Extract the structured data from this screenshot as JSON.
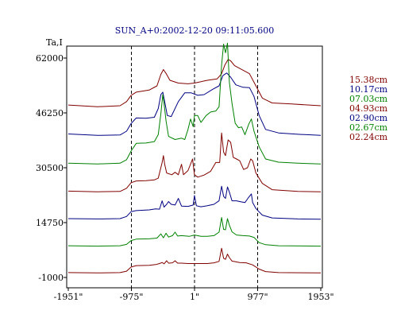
{
  "chart_data": {
    "type": "line",
    "title": "SUN_A+0:2002-12-20 09:11:05.600",
    "ylabel": "Ta,I",
    "xlabel": "",
    "xlim": [
      -1951,
      1953
    ],
    "ylim": [
      -1000,
      66500
    ],
    "x_ticks": [
      -1951,
      -975,
      1,
      977,
      1953
    ],
    "x_tick_labels": [
      "-1951\"",
      "-975\"",
      "1\"",
      "977\"",
      "1953\""
    ],
    "y_ticks": [
      62000,
      46250,
      30500,
      14750,
      -1000
    ],
    "y_tick_labels": [
      "62000",
      "46250",
      "30500",
      "14750",
      "-1000"
    ],
    "vlines": [
      -975,
      1,
      977
    ],
    "grid": false,
    "legend_position": "right",
    "series": [
      {
        "name": "15.38cm",
        "color": "#800000",
        "points": [
          [
            -1951,
            48500
          ],
          [
            -1500,
            48000
          ],
          [
            -1150,
            48300
          ],
          [
            -1050,
            49500
          ],
          [
            -980,
            51300
          ],
          [
            -900,
            52200
          ],
          [
            -700,
            52800
          ],
          [
            -580,
            54000
          ],
          [
            -520,
            57300
          ],
          [
            -480,
            58700
          ],
          [
            -440,
            57600
          ],
          [
            -380,
            55600
          ],
          [
            -250,
            54800
          ],
          [
            -100,
            54600
          ],
          [
            0,
            54800
          ],
          [
            200,
            55600
          ],
          [
            350,
            56000
          ],
          [
            420,
            57500
          ],
          [
            470,
            60000
          ],
          [
            520,
            61600
          ],
          [
            560,
            61200
          ],
          [
            620,
            59800
          ],
          [
            700,
            59000
          ],
          [
            850,
            57500
          ],
          [
            950,
            54000
          ],
          [
            1050,
            50500
          ],
          [
            1200,
            49100
          ],
          [
            1500,
            48800
          ],
          [
            1953,
            48300
          ]
        ]
      },
      {
        "name": "10.17cm",
        "color": "#000080",
        "points": [
          [
            -1951,
            40200
          ],
          [
            -1500,
            39800
          ],
          [
            -1150,
            39900
          ],
          [
            -1050,
            41000
          ],
          [
            -980,
            43200
          ],
          [
            -900,
            44800
          ],
          [
            -750,
            44700
          ],
          [
            -620,
            45000
          ],
          [
            -560,
            47500
          ],
          [
            -520,
            51500
          ],
          [
            -490,
            52200
          ],
          [
            -460,
            49500
          ],
          [
            -420,
            45500
          ],
          [
            -360,
            45200
          ],
          [
            -250,
            49500
          ],
          [
            -150,
            52000
          ],
          [
            -50,
            52000
          ],
          [
            50,
            51300
          ],
          [
            150,
            51500
          ],
          [
            280,
            53000
          ],
          [
            380,
            54000
          ],
          [
            440,
            57000
          ],
          [
            500,
            57700
          ],
          [
            560,
            56500
          ],
          [
            640,
            54300
          ],
          [
            750,
            53600
          ],
          [
            850,
            53500
          ],
          [
            920,
            51000
          ],
          [
            1000,
            45500
          ],
          [
            1100,
            41500
          ],
          [
            1300,
            40500
          ],
          [
            1600,
            40100
          ],
          [
            1953,
            39800
          ]
        ]
      },
      {
        "name": "07.03cm",
        "color": "#008000",
        "points": [
          [
            -1951,
            31800
          ],
          [
            -1500,
            31600
          ],
          [
            -1150,
            31800
          ],
          [
            -1050,
            32800
          ],
          [
            -980,
            35300
          ],
          [
            -900,
            37500
          ],
          [
            -750,
            37600
          ],
          [
            -620,
            38000
          ],
          [
            -560,
            40000
          ],
          [
            -520,
            46000
          ],
          [
            -490,
            51500
          ],
          [
            -470,
            49000
          ],
          [
            -440,
            44000
          ],
          [
            -400,
            39500
          ],
          [
            -300,
            38600
          ],
          [
            -200,
            39000
          ],
          [
            -150,
            38600
          ],
          [
            -100,
            41500
          ],
          [
            -60,
            44500
          ],
          [
            -20,
            42300
          ],
          [
            0,
            45500
          ],
          [
            50,
            45500
          ],
          [
            100,
            43500
          ],
          [
            180,
            45500
          ],
          [
            250,
            46500
          ],
          [
            330,
            46800
          ],
          [
            380,
            48000
          ],
          [
            420,
            60000
          ],
          [
            450,
            66000
          ],
          [
            480,
            63500
          ],
          [
            510,
            66300
          ],
          [
            540,
            55000
          ],
          [
            580,
            49000
          ],
          [
            630,
            43300
          ],
          [
            680,
            42000
          ],
          [
            730,
            42200
          ],
          [
            780,
            40000
          ],
          [
            840,
            43000
          ],
          [
            880,
            44500
          ],
          [
            920,
            41000
          ],
          [
            1000,
            36500
          ],
          [
            1100,
            33000
          ],
          [
            1300,
            32100
          ],
          [
            1600,
            31800
          ],
          [
            1953,
            31600
          ]
        ]
      },
      {
        "name": "04.93cm",
        "color": "#800000",
        "points": [
          [
            -1951,
            23800
          ],
          [
            -1500,
            23600
          ],
          [
            -1150,
            23700
          ],
          [
            -1050,
            24600
          ],
          [
            -980,
            26200
          ],
          [
            -900,
            26700
          ],
          [
            -750,
            26800
          ],
          [
            -620,
            27000
          ],
          [
            -560,
            27500
          ],
          [
            -500,
            32000
          ],
          [
            -480,
            34000
          ],
          [
            -460,
            31500
          ],
          [
            -430,
            29000
          ],
          [
            -350,
            28500
          ],
          [
            -300,
            29200
          ],
          [
            -250,
            28500
          ],
          [
            -200,
            31500
          ],
          [
            -170,
            28500
          ],
          [
            -100,
            29700
          ],
          [
            -30,
            33000
          ],
          [
            0,
            28500
          ],
          [
            50,
            27800
          ],
          [
            150,
            28400
          ],
          [
            250,
            29500
          ],
          [
            330,
            32000
          ],
          [
            390,
            32000
          ],
          [
            420,
            40500
          ],
          [
            450,
            35000
          ],
          [
            480,
            34000
          ],
          [
            520,
            38500
          ],
          [
            560,
            37800
          ],
          [
            600,
            33500
          ],
          [
            650,
            33000
          ],
          [
            700,
            32500
          ],
          [
            760,
            30000
          ],
          [
            820,
            30500
          ],
          [
            870,
            33000
          ],
          [
            900,
            32500
          ],
          [
            950,
            29000
          ],
          [
            1050,
            26000
          ],
          [
            1200,
            24200
          ],
          [
            1600,
            23700
          ],
          [
            1953,
            23600
          ]
        ]
      },
      {
        "name": "02.90cm",
        "color": "#000080",
        "points": [
          [
            -1951,
            15900
          ],
          [
            -1500,
            15800
          ],
          [
            -1150,
            15900
          ],
          [
            -1050,
            16500
          ],
          [
            -980,
            17900
          ],
          [
            -900,
            18200
          ],
          [
            -700,
            18400
          ],
          [
            -600,
            18700
          ],
          [
            -540,
            18600
          ],
          [
            -500,
            21000
          ],
          [
            -470,
            19200
          ],
          [
            -430,
            20000
          ],
          [
            -400,
            20800
          ],
          [
            -360,
            20000
          ],
          [
            -300,
            19800
          ],
          [
            -250,
            21700
          ],
          [
            -200,
            19500
          ],
          [
            -100,
            19400
          ],
          [
            -20,
            19800
          ],
          [
            0,
            22500
          ],
          [
            30,
            19600
          ],
          [
            100,
            19300
          ],
          [
            200,
            19600
          ],
          [
            300,
            20000
          ],
          [
            380,
            21000
          ],
          [
            420,
            25200
          ],
          [
            450,
            22300
          ],
          [
            480,
            21700
          ],
          [
            510,
            25000
          ],
          [
            540,
            23500
          ],
          [
            580,
            21000
          ],
          [
            650,
            21000
          ],
          [
            720,
            20700
          ],
          [
            780,
            20500
          ],
          [
            830,
            21800
          ],
          [
            880,
            23000
          ],
          [
            900,
            20500
          ],
          [
            950,
            18800
          ],
          [
            1050,
            16900
          ],
          [
            1200,
            16100
          ],
          [
            1600,
            15800
          ],
          [
            1953,
            15700
          ]
        ]
      },
      {
        "name": "02.67cm",
        "color": "#008000",
        "points": [
          [
            -1951,
            8100
          ],
          [
            -1500,
            8000
          ],
          [
            -1150,
            8100
          ],
          [
            -1050,
            8500
          ],
          [
            -980,
            9600
          ],
          [
            -900,
            10000
          ],
          [
            -700,
            10100
          ],
          [
            -580,
            10300
          ],
          [
            -520,
            11500
          ],
          [
            -480,
            10400
          ],
          [
            -440,
            11700
          ],
          [
            -400,
            10600
          ],
          [
            -340,
            11000
          ],
          [
            -300,
            12000
          ],
          [
            -260,
            10900
          ],
          [
            -200,
            11000
          ],
          [
            -80,
            10800
          ],
          [
            0,
            11200
          ],
          [
            100,
            10800
          ],
          [
            200,
            10800
          ],
          [
            300,
            11000
          ],
          [
            380,
            12000
          ],
          [
            420,
            16200
          ],
          [
            450,
            12800
          ],
          [
            480,
            12700
          ],
          [
            510,
            15900
          ],
          [
            540,
            14000
          ],
          [
            580,
            12100
          ],
          [
            650,
            11200
          ],
          [
            750,
            11000
          ],
          [
            850,
            10900
          ],
          [
            920,
            10500
          ],
          [
            1000,
            9000
          ],
          [
            1100,
            8400
          ],
          [
            1300,
            8100
          ],
          [
            1953,
            8000
          ]
        ]
      },
      {
        "name": "02.24cm",
        "color": "#800000",
        "points": [
          [
            -1951,
            400
          ],
          [
            -1500,
            300
          ],
          [
            -1150,
            400
          ],
          [
            -1050,
            800
          ],
          [
            -980,
            2000
          ],
          [
            -900,
            2400
          ],
          [
            -700,
            2500
          ],
          [
            -600,
            2700
          ],
          [
            -540,
            3000
          ],
          [
            -500,
            3300
          ],
          [
            -470,
            2900
          ],
          [
            -430,
            3800
          ],
          [
            -400,
            3100
          ],
          [
            -340,
            3200
          ],
          [
            -300,
            3800
          ],
          [
            -260,
            3100
          ],
          [
            -200,
            3100
          ],
          [
            -100,
            3000
          ],
          [
            0,
            3000
          ],
          [
            100,
            3000
          ],
          [
            200,
            3000
          ],
          [
            300,
            3200
          ],
          [
            380,
            3600
          ],
          [
            420,
            7400
          ],
          [
            450,
            4500
          ],
          [
            480,
            4200
          ],
          [
            510,
            5700
          ],
          [
            540,
            4700
          ],
          [
            580,
            3700
          ],
          [
            700,
            3300
          ],
          [
            800,
            3200
          ],
          [
            900,
            2600
          ],
          [
            1000,
            1400
          ],
          [
            1100,
            700
          ],
          [
            1300,
            400
          ],
          [
            1953,
            300
          ]
        ]
      }
    ]
  }
}
